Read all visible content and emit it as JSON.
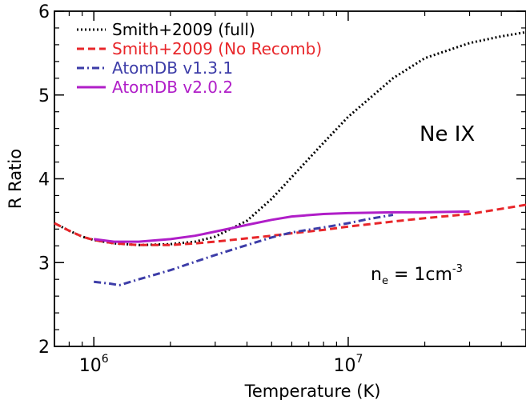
{
  "chart_data": {
    "type": "line",
    "xlabel": "Temperature (K)",
    "ylabel": "R Ratio",
    "xscale": "log",
    "xlim": [
      700000,
      50000000
    ],
    "ylim": [
      2,
      6
    ],
    "grid": false,
    "legend_position": "top-left",
    "x_major_ticks": [
      1000000,
      10000000
    ],
    "x_tick_labels": [
      {
        "base": "10",
        "exp": "6"
      },
      {
        "base": "10",
        "exp": "7"
      }
    ],
    "y_ticks": [
      2,
      3,
      4,
      5,
      6
    ],
    "y_tick_labels": [
      "2",
      "3",
      "4",
      "5",
      "6"
    ],
    "annotations": {
      "ion": "Ne IX",
      "density": {
        "pre": "n",
        "sub": "e",
        "mid": " = 1cm",
        "sup": "-3"
      }
    },
    "series": [
      {
        "name": "Smith+2009 (full)",
        "color": "#000000",
        "style": "dotted",
        "x": [
          700000,
          800000,
          900000,
          1000000,
          1200000,
          1500000,
          2000000,
          2500000,
          3000000,
          4000000,
          5000000,
          6000000,
          8000000,
          10000000,
          15000000,
          20000000,
          30000000,
          40000000,
          50000000
        ],
        "y": [
          3.47,
          3.38,
          3.31,
          3.27,
          3.23,
          3.21,
          3.22,
          3.25,
          3.31,
          3.5,
          3.76,
          4.02,
          4.43,
          4.74,
          5.2,
          5.44,
          5.62,
          5.7,
          5.75
        ]
      },
      {
        "name": "Smith+2009 (No Recomb)",
        "color": "#e8262a",
        "style": "dashed",
        "x": [
          700000,
          800000,
          900000,
          1000000,
          1200000,
          1500000,
          2000000,
          2500000,
          3000000,
          4000000,
          5000000,
          6000000,
          8000000,
          10000000,
          15000000,
          20000000,
          30000000,
          50000000
        ],
        "y": [
          3.47,
          3.38,
          3.31,
          3.27,
          3.23,
          3.21,
          3.21,
          3.23,
          3.25,
          3.29,
          3.32,
          3.35,
          3.39,
          3.43,
          3.49,
          3.53,
          3.58,
          3.69
        ]
      },
      {
        "name": "AtomDB v1.3.1",
        "color": "#3d3da8",
        "style": "dashdot",
        "x": [
          1000000,
          1150000,
          1260000,
          1500000,
          2000000,
          2500000,
          3000000,
          4000000,
          5000000,
          6000000,
          8000000,
          10000000,
          12000000,
          15000000
        ],
        "y": [
          2.77,
          2.75,
          2.73,
          2.8,
          2.91,
          3.01,
          3.09,
          3.21,
          3.3,
          3.36,
          3.42,
          3.47,
          3.52,
          3.57
        ]
      },
      {
        "name": "AtomDB v2.0.2",
        "color": "#b01ec8",
        "style": "solid",
        "x": [
          1000000,
          1200000,
          1500000,
          2000000,
          2500000,
          3000000,
          4000000,
          5000000,
          6000000,
          8000000,
          10000000,
          15000000,
          20000000,
          30000000
        ],
        "y": [
          3.28,
          3.25,
          3.25,
          3.28,
          3.32,
          3.37,
          3.45,
          3.51,
          3.55,
          3.58,
          3.59,
          3.6,
          3.6,
          3.61
        ]
      }
    ]
  }
}
